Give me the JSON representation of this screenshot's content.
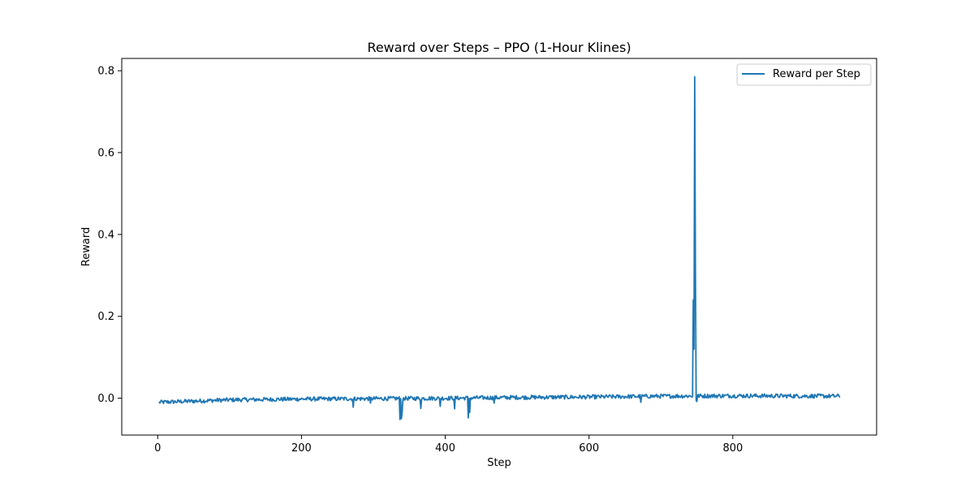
{
  "chart_data": {
    "type": "line",
    "title": "Reward over Steps – PPO (1-Hour Klines)",
    "xlabel": "Step",
    "ylabel": "Reward",
    "xlim": [
      -50,
      1000
    ],
    "ylim": [
      -0.09,
      0.83
    ],
    "xticks": [
      0,
      200,
      400,
      600,
      800
    ],
    "yticks": [
      0.0,
      0.2,
      0.4,
      0.6,
      0.8
    ],
    "xtick_labels": [
      "0",
      "200",
      "400",
      "600",
      "800"
    ],
    "ytick_labels": [
      "0.0",
      "0.2",
      "0.4",
      "0.6",
      "0.8"
    ],
    "grid": false,
    "legend": {
      "position": "top-right",
      "entries": [
        "Reward per Step"
      ]
    },
    "series": [
      {
        "name": "Reward per Step",
        "color": "#1f77b4",
        "step_start": 2,
        "step_end": 949,
        "baseline": [
          [
            2,
            -0.01
          ],
          [
            100,
            -0.004
          ],
          [
            200,
            -0.002
          ],
          [
            300,
            -0.001
          ],
          [
            400,
            0.0
          ],
          [
            500,
            0.002
          ],
          [
            600,
            0.003
          ],
          [
            700,
            0.005
          ],
          [
            800,
            0.006
          ],
          [
            949,
            0.005
          ]
        ],
        "noise_amplitude": 0.005,
        "events": [
          [
            272,
            -0.022
          ],
          [
            296,
            -0.012
          ],
          [
            337,
            -0.052
          ],
          [
            339,
            -0.05
          ],
          [
            340,
            -0.035
          ],
          [
            366,
            -0.025
          ],
          [
            393,
            -0.02
          ],
          [
            413,
            -0.026
          ],
          [
            432,
            -0.048
          ],
          [
            434,
            -0.035
          ],
          [
            468,
            -0.012
          ],
          [
            672,
            -0.01
          ],
          [
            745,
            0.24
          ],
          [
            746,
            0.12
          ],
          [
            747,
            0.785
          ],
          [
            748,
            0.3
          ],
          [
            749,
            -0.005
          ],
          [
            750,
            -0.008
          ]
        ]
      }
    ]
  }
}
